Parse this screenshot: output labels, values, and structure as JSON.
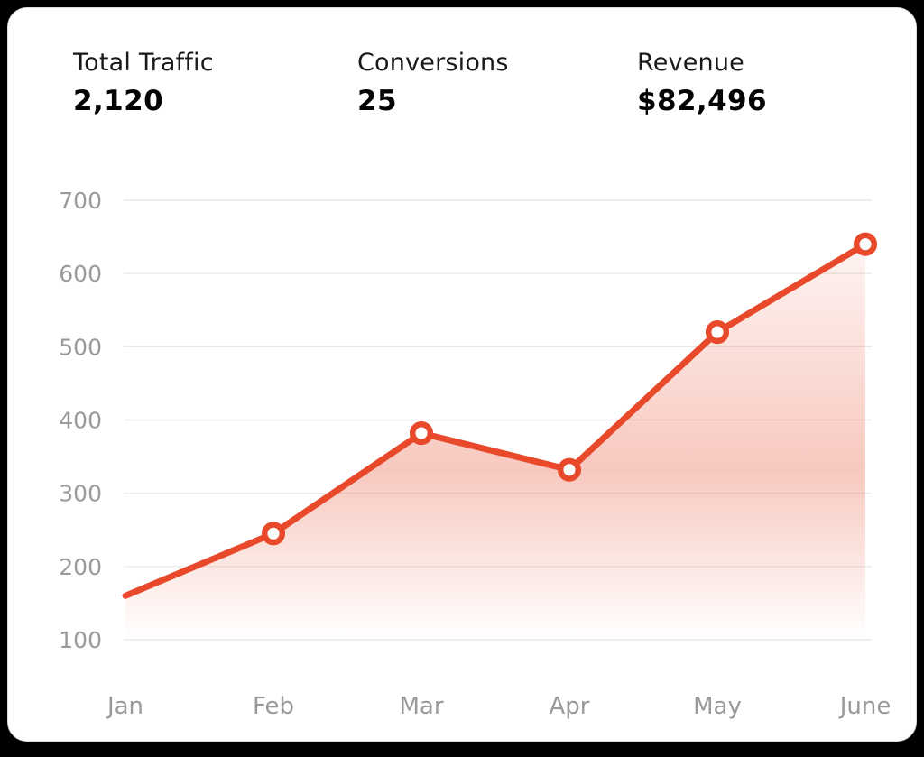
{
  "page": {
    "background": "#000000"
  },
  "card": {
    "background": "#ffffff",
    "border_color": "#dcdcdc"
  },
  "stats": [
    {
      "label": "Total Traffic",
      "value": "2,120"
    },
    {
      "label": "Conversions",
      "value": "25"
    },
    {
      "label": "Revenue",
      "value": "$82,496"
    }
  ],
  "chart_data": {
    "type": "area",
    "title": "",
    "categories": [
      "Jan",
      "Feb",
      "Mar",
      "Apr",
      "May",
      "June"
    ],
    "values": [
      160,
      245,
      382,
      332,
      520,
      640
    ],
    "xlabel": "",
    "ylabel": "",
    "ylim": [
      100,
      700
    ],
    "yticks": [
      100,
      200,
      300,
      400,
      500,
      600,
      700
    ],
    "grid": true,
    "legend": "none",
    "markers": {
      "show": true,
      "skip_first": true,
      "fill": "#ffffff"
    },
    "colors": {
      "line": "#E8492B",
      "marker_fill": "#ffffff",
      "axis_label": "#9a9a9a",
      "gridline": "#e9e9e9",
      "area_gradient": [
        "rgba(232,73,43,0.05)",
        "rgba(232,73,43,0.30)",
        "rgba(232,73,43,0)"
      ]
    }
  }
}
